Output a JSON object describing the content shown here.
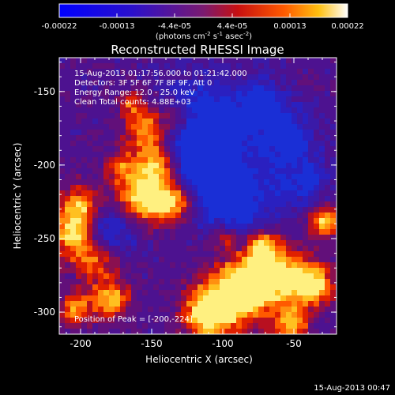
{
  "colorbar": {
    "tick_labels": [
      "-0.00022",
      "-0.00013",
      "-4.4e-05",
      "4.4e-05",
      "0.00013",
      "0.00022"
    ],
    "units_label": "(photons cm",
    "units_exp1": "-2",
    "units_mid1": " s",
    "units_exp2": "-1",
    "units_mid2": " asec",
    "units_exp3": "-2",
    "units_end": ")"
  },
  "plot": {
    "title": "Reconstructed RHESSI Image",
    "xlabel": "Heliocentric X (arcsec)",
    "ylabel": "Heliocentric Y (arcsec)",
    "x_ticks": [
      "-200",
      "-150",
      "-100",
      "-50"
    ],
    "y_ticks": [
      "-150",
      "-200",
      "-250",
      "-300"
    ],
    "x_tick_values": [
      -200,
      -150,
      -100,
      -50
    ],
    "y_tick_values": [
      -150,
      -200,
      -250,
      -300
    ],
    "xlim": [
      -215,
      -20
    ],
    "ylim": [
      -315,
      -127
    ],
    "info_lines": [
      "15-Aug-2013 01:17:56.000 to 01:21:42.000",
      "Detectors: 3F 5F 6F 7F 8F 9F, Att 0",
      "Energy Range: 12.0 - 25.0 keV",
      "Clean     Total counts: 4.88E+03"
    ],
    "peak_label": "Position of Peak = [-200,-224]"
  },
  "footer": {
    "timestamp": "15-Aug-2013 00:47"
  }
}
